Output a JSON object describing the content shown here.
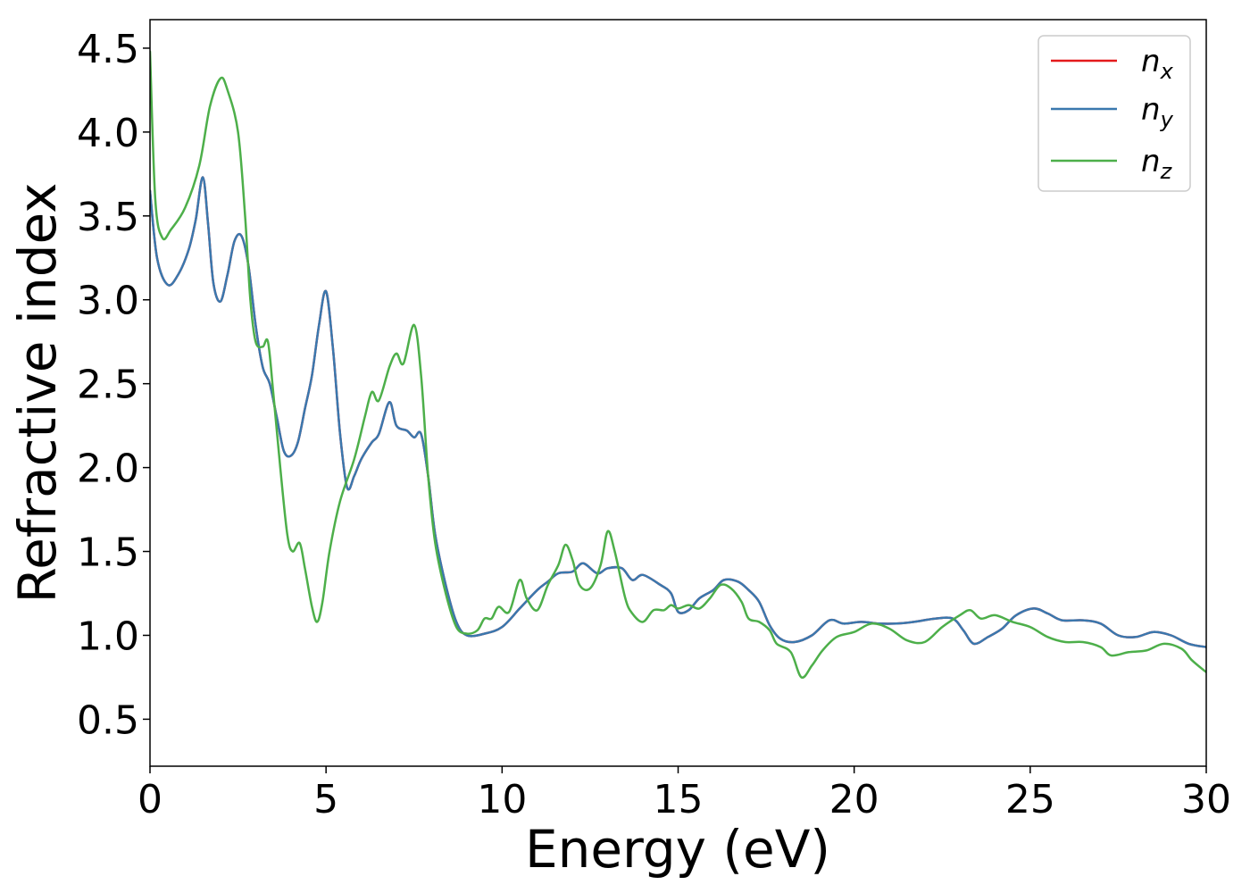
{
  "chart_data": {
    "type": "line",
    "xlabel": "Energy (eV)",
    "ylabel": "Refractive index",
    "xlim": [
      0,
      30
    ],
    "ylim": [
      0.22,
      4.67
    ],
    "xticks": [
      0,
      5,
      10,
      15,
      20,
      25,
      30
    ],
    "xtick_labels": [
      "0",
      "5",
      "10",
      "15",
      "20",
      "25",
      "30"
    ],
    "yticks": [
      0.5,
      1.0,
      1.5,
      2.0,
      2.5,
      3.0,
      3.5,
      4.0,
      4.5
    ],
    "ytick_labels": [
      "0.5",
      "1.0",
      "1.5",
      "2.0",
      "2.5",
      "3.0",
      "3.5",
      "4.0",
      "4.5"
    ],
    "grid": false,
    "legend_position": "top-right",
    "series": [
      {
        "name": "n_x",
        "legend_base": "n",
        "legend_sub": "x",
        "color": "#e41a1c",
        "points": [
          [
            0,
            3.65
          ],
          [
            0.2,
            3.25
          ],
          [
            0.5,
            3.09
          ],
          [
            0.8,
            3.15
          ],
          [
            1.1,
            3.3
          ],
          [
            1.3,
            3.48
          ],
          [
            1.5,
            3.73
          ],
          [
            1.65,
            3.45
          ],
          [
            1.8,
            3.1
          ],
          [
            2.0,
            2.99
          ],
          [
            2.2,
            3.15
          ],
          [
            2.4,
            3.35
          ],
          [
            2.6,
            3.38
          ],
          [
            2.8,
            3.2
          ],
          [
            3.0,
            2.85
          ],
          [
            3.2,
            2.6
          ],
          [
            3.4,
            2.5
          ],
          [
            3.6,
            2.3
          ],
          [
            3.8,
            2.1
          ],
          [
            4.0,
            2.07
          ],
          [
            4.2,
            2.15
          ],
          [
            4.4,
            2.35
          ],
          [
            4.6,
            2.55
          ],
          [
            4.8,
            2.85
          ],
          [
            5.0,
            3.05
          ],
          [
            5.2,
            2.7
          ],
          [
            5.4,
            2.2
          ],
          [
            5.6,
            1.88
          ],
          [
            5.8,
            1.95
          ],
          [
            6.0,
            2.05
          ],
          [
            6.3,
            2.15
          ],
          [
            6.5,
            2.2
          ],
          [
            6.8,
            2.39
          ],
          [
            7.0,
            2.25
          ],
          [
            7.3,
            2.22
          ],
          [
            7.5,
            2.18
          ],
          [
            7.7,
            2.2
          ],
          [
            7.9,
            1.95
          ],
          [
            8.1,
            1.6
          ],
          [
            8.4,
            1.3
          ],
          [
            8.7,
            1.08
          ],
          [
            9.0,
            1.0
          ],
          [
            9.5,
            1.01
          ],
          [
            10.0,
            1.05
          ],
          [
            10.5,
            1.16
          ],
          [
            11.0,
            1.27
          ],
          [
            11.3,
            1.32
          ],
          [
            11.6,
            1.37
          ],
          [
            12.0,
            1.38
          ],
          [
            12.3,
            1.43
          ],
          [
            12.7,
            1.37
          ],
          [
            13.0,
            1.4
          ],
          [
            13.4,
            1.4
          ],
          [
            13.7,
            1.33
          ],
          [
            14.0,
            1.36
          ],
          [
            14.5,
            1.3
          ],
          [
            14.8,
            1.25
          ],
          [
            15.0,
            1.14
          ],
          [
            15.3,
            1.15
          ],
          [
            15.6,
            1.22
          ],
          [
            16.0,
            1.27
          ],
          [
            16.3,
            1.33
          ],
          [
            16.7,
            1.32
          ],
          [
            17.0,
            1.27
          ],
          [
            17.3,
            1.2
          ],
          [
            17.6,
            1.06
          ],
          [
            17.9,
            0.98
          ],
          [
            18.3,
            0.96
          ],
          [
            18.8,
            1.0
          ],
          [
            19.3,
            1.09
          ],
          [
            19.7,
            1.07
          ],
          [
            20.2,
            1.08
          ],
          [
            20.7,
            1.07
          ],
          [
            21.2,
            1.07
          ],
          [
            21.7,
            1.08
          ],
          [
            22.3,
            1.1
          ],
          [
            22.8,
            1.1
          ],
          [
            23.1,
            1.03
          ],
          [
            23.4,
            0.95
          ],
          [
            23.8,
            0.99
          ],
          [
            24.2,
            1.04
          ],
          [
            24.6,
            1.12
          ],
          [
            25.1,
            1.16
          ],
          [
            25.5,
            1.13
          ],
          [
            25.9,
            1.09
          ],
          [
            26.5,
            1.09
          ],
          [
            27.0,
            1.07
          ],
          [
            27.5,
            1.0
          ],
          [
            28.0,
            0.99
          ],
          [
            28.5,
            1.02
          ],
          [
            29.0,
            1.0
          ],
          [
            29.5,
            0.95
          ],
          [
            30.0,
            0.93
          ]
        ]
      },
      {
        "name": "n_y",
        "legend_base": "n",
        "legend_sub": "y",
        "color": "#3a78ae",
        "points": [
          [
            0,
            3.65
          ],
          [
            0.2,
            3.25
          ],
          [
            0.5,
            3.09
          ],
          [
            0.8,
            3.15
          ],
          [
            1.1,
            3.3
          ],
          [
            1.3,
            3.48
          ],
          [
            1.5,
            3.73
          ],
          [
            1.65,
            3.45
          ],
          [
            1.8,
            3.1
          ],
          [
            2.0,
            2.99
          ],
          [
            2.2,
            3.15
          ],
          [
            2.4,
            3.35
          ],
          [
            2.6,
            3.38
          ],
          [
            2.8,
            3.2
          ],
          [
            3.0,
            2.85
          ],
          [
            3.2,
            2.6
          ],
          [
            3.4,
            2.5
          ],
          [
            3.6,
            2.3
          ],
          [
            3.8,
            2.1
          ],
          [
            4.0,
            2.07
          ],
          [
            4.2,
            2.15
          ],
          [
            4.4,
            2.35
          ],
          [
            4.6,
            2.55
          ],
          [
            4.8,
            2.85
          ],
          [
            5.0,
            3.05
          ],
          [
            5.2,
            2.7
          ],
          [
            5.4,
            2.2
          ],
          [
            5.6,
            1.88
          ],
          [
            5.8,
            1.95
          ],
          [
            6.0,
            2.05
          ],
          [
            6.3,
            2.15
          ],
          [
            6.5,
            2.2
          ],
          [
            6.8,
            2.39
          ],
          [
            7.0,
            2.25
          ],
          [
            7.3,
            2.22
          ],
          [
            7.5,
            2.18
          ],
          [
            7.7,
            2.2
          ],
          [
            7.9,
            1.95
          ],
          [
            8.1,
            1.6
          ],
          [
            8.4,
            1.3
          ],
          [
            8.7,
            1.08
          ],
          [
            9.0,
            1.0
          ],
          [
            9.5,
            1.01
          ],
          [
            10.0,
            1.05
          ],
          [
            10.5,
            1.16
          ],
          [
            11.0,
            1.27
          ],
          [
            11.3,
            1.32
          ],
          [
            11.6,
            1.37
          ],
          [
            12.0,
            1.38
          ],
          [
            12.3,
            1.43
          ],
          [
            12.7,
            1.37
          ],
          [
            13.0,
            1.4
          ],
          [
            13.4,
            1.4
          ],
          [
            13.7,
            1.33
          ],
          [
            14.0,
            1.36
          ],
          [
            14.5,
            1.3
          ],
          [
            14.8,
            1.25
          ],
          [
            15.0,
            1.14
          ],
          [
            15.3,
            1.15
          ],
          [
            15.6,
            1.22
          ],
          [
            16.0,
            1.27
          ],
          [
            16.3,
            1.33
          ],
          [
            16.7,
            1.32
          ],
          [
            17.0,
            1.27
          ],
          [
            17.3,
            1.2
          ],
          [
            17.6,
            1.06
          ],
          [
            17.9,
            0.98
          ],
          [
            18.3,
            0.96
          ],
          [
            18.8,
            1.0
          ],
          [
            19.3,
            1.09
          ],
          [
            19.7,
            1.07
          ],
          [
            20.2,
            1.08
          ],
          [
            20.7,
            1.07
          ],
          [
            21.2,
            1.07
          ],
          [
            21.7,
            1.08
          ],
          [
            22.3,
            1.1
          ],
          [
            22.8,
            1.1
          ],
          [
            23.1,
            1.03
          ],
          [
            23.4,
            0.95
          ],
          [
            23.8,
            0.99
          ],
          [
            24.2,
            1.04
          ],
          [
            24.6,
            1.12
          ],
          [
            25.1,
            1.16
          ],
          [
            25.5,
            1.13
          ],
          [
            25.9,
            1.09
          ],
          [
            26.5,
            1.09
          ],
          [
            27.0,
            1.07
          ],
          [
            27.5,
            1.0
          ],
          [
            28.0,
            0.99
          ],
          [
            28.5,
            1.02
          ],
          [
            29.0,
            1.0
          ],
          [
            29.5,
            0.95
          ],
          [
            30.0,
            0.93
          ]
        ]
      },
      {
        "name": "n_z",
        "legend_base": "n",
        "legend_sub": "z",
        "color": "#4daf4a",
        "points": [
          [
            0,
            4.48
          ],
          [
            0.15,
            3.6
          ],
          [
            0.35,
            3.37
          ],
          [
            0.6,
            3.42
          ],
          [
            1.0,
            3.55
          ],
          [
            1.4,
            3.8
          ],
          [
            1.7,
            4.15
          ],
          [
            2.0,
            4.32
          ],
          [
            2.2,
            4.25
          ],
          [
            2.5,
            4.0
          ],
          [
            2.7,
            3.5
          ],
          [
            2.85,
            3.0
          ],
          [
            3.0,
            2.75
          ],
          [
            3.2,
            2.72
          ],
          [
            3.35,
            2.75
          ],
          [
            3.5,
            2.45
          ],
          [
            3.7,
            2.0
          ],
          [
            3.9,
            1.6
          ],
          [
            4.05,
            1.5
          ],
          [
            4.25,
            1.55
          ],
          [
            4.4,
            1.4
          ],
          [
            4.6,
            1.17
          ],
          [
            4.75,
            1.08
          ],
          [
            4.9,
            1.2
          ],
          [
            5.1,
            1.5
          ],
          [
            5.4,
            1.8
          ],
          [
            5.8,
            2.05
          ],
          [
            6.1,
            2.3
          ],
          [
            6.3,
            2.45
          ],
          [
            6.5,
            2.4
          ],
          [
            6.8,
            2.6
          ],
          [
            7.0,
            2.68
          ],
          [
            7.2,
            2.62
          ],
          [
            7.5,
            2.85
          ],
          [
            7.7,
            2.55
          ],
          [
            7.9,
            1.95
          ],
          [
            8.1,
            1.55
          ],
          [
            8.4,
            1.25
          ],
          [
            8.7,
            1.05
          ],
          [
            9.0,
            1.01
          ],
          [
            9.3,
            1.03
          ],
          [
            9.5,
            1.1
          ],
          [
            9.7,
            1.1
          ],
          [
            9.9,
            1.17
          ],
          [
            10.2,
            1.14
          ],
          [
            10.5,
            1.33
          ],
          [
            10.7,
            1.22
          ],
          [
            11.0,
            1.15
          ],
          [
            11.3,
            1.3
          ],
          [
            11.6,
            1.42
          ],
          [
            11.8,
            1.54
          ],
          [
            12.0,
            1.45
          ],
          [
            12.2,
            1.3
          ],
          [
            12.5,
            1.28
          ],
          [
            12.8,
            1.42
          ],
          [
            13.0,
            1.62
          ],
          [
            13.2,
            1.5
          ],
          [
            13.5,
            1.22
          ],
          [
            13.7,
            1.13
          ],
          [
            14.0,
            1.08
          ],
          [
            14.3,
            1.15
          ],
          [
            14.6,
            1.15
          ],
          [
            14.8,
            1.18
          ],
          [
            15.0,
            1.16
          ],
          [
            15.3,
            1.18
          ],
          [
            15.6,
            1.16
          ],
          [
            15.9,
            1.22
          ],
          [
            16.2,
            1.3
          ],
          [
            16.5,
            1.28
          ],
          [
            16.8,
            1.2
          ],
          [
            17.0,
            1.1
          ],
          [
            17.3,
            1.08
          ],
          [
            17.6,
            1.03
          ],
          [
            17.8,
            0.95
          ],
          [
            18.2,
            0.9
          ],
          [
            18.5,
            0.75
          ],
          [
            18.8,
            0.82
          ],
          [
            19.1,
            0.91
          ],
          [
            19.5,
            0.99
          ],
          [
            20.0,
            1.02
          ],
          [
            20.5,
            1.07
          ],
          [
            21.0,
            1.04
          ],
          [
            21.5,
            0.97
          ],
          [
            22.0,
            0.96
          ],
          [
            22.5,
            1.05
          ],
          [
            23.0,
            1.12
          ],
          [
            23.3,
            1.15
          ],
          [
            23.6,
            1.1
          ],
          [
            24.0,
            1.12
          ],
          [
            24.5,
            1.08
          ],
          [
            25.0,
            1.05
          ],
          [
            25.5,
            0.99
          ],
          [
            26.0,
            0.96
          ],
          [
            26.5,
            0.96
          ],
          [
            27.0,
            0.93
          ],
          [
            27.3,
            0.88
          ],
          [
            27.8,
            0.9
          ],
          [
            28.3,
            0.91
          ],
          [
            28.8,
            0.95
          ],
          [
            29.3,
            0.92
          ],
          [
            29.6,
            0.85
          ],
          [
            30.0,
            0.78
          ]
        ]
      }
    ]
  }
}
